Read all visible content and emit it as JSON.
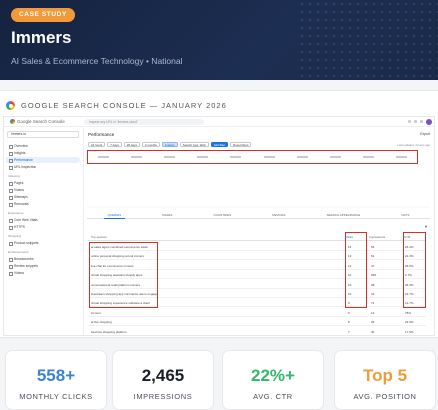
{
  "hero": {
    "badge": "CASE STUDY",
    "title": "Immers",
    "subtitle": "AI Sales & Ecommerce Technology • National"
  },
  "screenshot": {
    "label": "GOOGLE SEARCH CONSOLE — JANUARY 2026",
    "brand": "Google Search Console",
    "search_placeholder": "Inspect any URL in \"immers.cloud\"",
    "property": "Immers.io",
    "nav": {
      "items_top": [
        "Overview",
        "Insights",
        "Performance",
        "URL inspection"
      ],
      "indexing_label": "Indexing",
      "items_indexing": [
        "Pages",
        "Videos",
        "Sitemaps",
        "Removals"
      ],
      "experience_label": "Experience",
      "items_experience": [
        "Core Web Vitals",
        "HTTPS"
      ],
      "shopping_label": "Shopping",
      "items_shopping": [
        "Product snippets"
      ],
      "enhancements_label": "Enhancements",
      "items_enhancements": [
        "Breadcrumbs",
        "Review snippets",
        "Videos"
      ]
    },
    "performance_title": "Performance",
    "export_label": "Export",
    "filters": [
      "24 hours",
      "7 days",
      "28 days",
      "3 months",
      "Custom",
      "Search type: Web",
      "Add filter",
      "Reset filters"
    ],
    "last_updated": "Last updated: 4 hours ago",
    "tabs": [
      "QUERIES",
      "PAGES",
      "COUNTRIES",
      "DEVICES",
      "SEARCH APPEARANCE",
      "DAYS"
    ],
    "table": {
      "headers": [
        "Top queries",
        "Clicks",
        "Impressions",
        "CTR"
      ],
      "rows": [
        {
          "query": "ai sales agent combined ecommerce stack",
          "clicks": "14",
          "impressions": "53",
          "ctr": "26.4%"
        },
        {
          "query": "online personal shopping ai tool immers",
          "clicks": "13",
          "impressions": "61",
          "ctr": "21.3%"
        },
        {
          "query": "live chat for ecommerce immers",
          "clicks": "12",
          "impressions": "47",
          "ctr": "25.5%"
        },
        {
          "query": "virtual shopping assistant shopify apps",
          "clicks": "10",
          "impressions": "369",
          "ctr": "2.7%"
        },
        {
          "query": "conversational retail platform immers",
          "clicks": "10",
          "impressions": "38",
          "ctr": "26.3%"
        },
        {
          "query": "livestream shopping app commerce demo engage",
          "clicks": "10",
          "impressions": "44",
          "ctr": "22.7%"
        },
        {
          "query": "virtual shopping experience software a client",
          "clicks": "9",
          "impressions": "71",
          "ctr": "12.7%"
        },
        {
          "query": "immers",
          "clicks": "9",
          "impressions": "12",
          "ctr": "75%"
        },
        {
          "query": "ai live shopping",
          "clicks": "8",
          "impressions": "35",
          "ctr": "22.9%"
        },
        {
          "query": "best live shopping platform",
          "clicks": "7",
          "impressions": "40",
          "ctr": "17.5%"
        }
      ]
    }
  },
  "stats": [
    {
      "value": "558+",
      "label": "MONTHLY CLICKS",
      "color": "#3b82d6"
    },
    {
      "value": "2,465",
      "label": "IMPRESSIONS",
      "color": "#1a1f2b"
    },
    {
      "value": "22%+",
      "label": "AVG. CTR",
      "color": "#34b86b"
    },
    {
      "value": "Top 5",
      "label": "AVG. POSITION",
      "color": "#f29a3a"
    }
  ],
  "colors": {
    "hero_bg": "#15233f",
    "badge": "#f29a3a",
    "highlight": "#d93025",
    "gsc_blue": "#1a73e8"
  }
}
